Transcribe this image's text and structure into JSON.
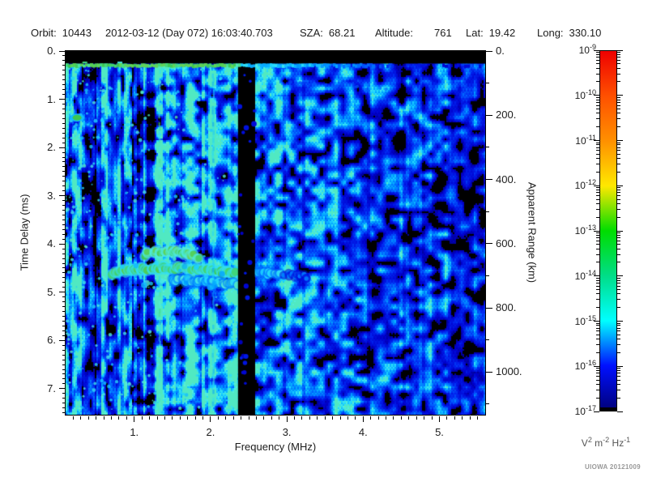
{
  "header": {
    "fields": [
      {
        "label": "Orbit:",
        "value": "10443"
      },
      {
        "label": "",
        "value": "2012-03-12 (Day 072) 16:03:40.703"
      },
      {
        "label": "SZA:",
        "value": "68.21"
      },
      {
        "label": "Altitude:",
        "value": "761"
      },
      {
        "label": "Lat:",
        "value": "19.42"
      },
      {
        "label": "Long:",
        "value": "330.10"
      }
    ]
  },
  "watermark": "UIOWA 20121009",
  "plot": {
    "x_axis": {
      "title": "Frequency (MHz)",
      "major_values": [
        1,
        2,
        3,
        4,
        5
      ],
      "major_labels": [
        "1.",
        "2.",
        "3.",
        "4.",
        "5."
      ],
      "minor_step_mhz": 0.1
    },
    "y_axis_left": {
      "title": "Time Delay (ms)",
      "major_values": [
        0,
        1,
        2,
        3,
        4,
        5,
        6,
        7
      ],
      "major_labels": [
        "0.",
        "1.",
        "2.",
        "3.",
        "4.",
        "5.",
        "6.",
        "7."
      ],
      "minor_step_ms": 0.1
    },
    "y_axis_right": {
      "title": "Apparent Range (km)",
      "major_values": [
        0,
        200,
        400,
        600,
        800,
        1000
      ],
      "major_labels": [
        "0.",
        "200.",
        "400.",
        "600.",
        "800.",
        "1000."
      ],
      "minor_step_km": 100
    },
    "colorbar": {
      "decade_base": "10",
      "decade_exponents": [
        "-9",
        "-10",
        "-11",
        "-12",
        "-13",
        "-14",
        "-15",
        "-16",
        "-17"
      ],
      "unit_parts": [
        [
          "V",
          "2"
        ],
        [
          "m",
          "-2"
        ],
        [
          "Hz",
          "-1"
        ]
      ]
    }
  },
  "chart_data": {
    "type": "heatmap",
    "title": "Radar sounder ionogram (echo spectral density vs frequency and time delay)",
    "xlabel": "Frequency (MHz)",
    "x_range_mhz": [
      0.1,
      5.6
    ],
    "ylabel": "Time Delay (ms)",
    "y_range_ms": [
      0,
      7.54
    ],
    "y2label": "Apparent Range (km)",
    "y2_range_km": [
      0,
      1133
    ],
    "zlabel": "V^2 m^-2 Hz^-1",
    "z_decades_log10": [
      -9,
      -17
    ],
    "colorbar_gradient": [
      [
        "-9",
        "#ee0000"
      ],
      [
        "-10",
        "#ff5000"
      ],
      [
        "-11",
        "#ff9000"
      ],
      [
        "-12",
        "#ffe800"
      ],
      [
        "-13",
        "#00dd00"
      ],
      [
        "-14",
        "#00dd88"
      ],
      [
        "-15",
        "#00ffff"
      ],
      [
        "-16",
        "#0010ff"
      ],
      [
        "-17",
        "#000078"
      ]
    ],
    "colormap_stops": [
      [
        0.0,
        "#000000"
      ],
      [
        0.07,
        "#000066"
      ],
      [
        0.15,
        "#0000cc"
      ],
      [
        0.25,
        "#0022ee"
      ],
      [
        0.35,
        "#0060ff"
      ],
      [
        0.45,
        "#00a0ff"
      ],
      [
        0.55,
        "#20d8ff"
      ],
      [
        0.63,
        "#55eedd"
      ],
      [
        0.71,
        "#44dd88"
      ],
      [
        0.8,
        "#3cc84e"
      ],
      [
        0.89,
        "#72d95e"
      ],
      [
        1.0,
        "#b0e878"
      ]
    ],
    "background_noise": {
      "regions": [
        {
          "f": [
            0.1,
            2.36
          ],
          "base": 0.42,
          "vertical_striping": true
        },
        {
          "f": [
            2.36,
            2.58
          ],
          "base": 0.0
        },
        {
          "f": [
            2.58,
            3.05
          ],
          "base": 0.35
        },
        {
          "f": [
            3.05,
            3.95
          ],
          "base": 0.3
        },
        {
          "f": [
            3.95,
            5.15
          ],
          "base": 0.24
        },
        {
          "f": [
            5.15,
            5.6
          ],
          "base": 0.21
        }
      ],
      "stripes": [
        {
          "f": [
            0.16,
            0.23
          ],
          "gain": 1.3
        },
        {
          "f": [
            0.35,
            0.5
          ],
          "gain": 0.45
        },
        {
          "f": [
            0.61,
            0.69
          ],
          "gain": 1.25
        },
        {
          "f": [
            0.79,
            0.86
          ],
          "gain": 1.2
        },
        {
          "f": [
            0.97,
            1.26
          ],
          "gain": 0.5
        },
        {
          "f": [
            1.07,
            1.12
          ],
          "gain": 1.8
        },
        {
          "f": [
            1.27,
            1.37
          ],
          "gain": 1.75
        },
        {
          "f": [
            1.42,
            1.6
          ],
          "gain": 1.25
        },
        {
          "f": [
            1.74,
            1.85
          ],
          "gain": 1.2
        },
        {
          "f": [
            1.98,
            2.07
          ],
          "gain": 1.45
        }
      ]
    },
    "features": {
      "receiver_blank_top_band": {
        "delay_ms": [
          0,
          0.26
        ]
      },
      "transmit_pulse_line": {
        "delay_ms": 0.3,
        "intensity_profile": [
          [
            0.1,
            0.78
          ],
          [
            1.0,
            0.85
          ],
          [
            2.3,
            0.8
          ],
          [
            2.45,
            0.5
          ],
          [
            2.6,
            0.55
          ],
          [
            3.3,
            0.48
          ],
          [
            3.6,
            0.42
          ],
          [
            4.4,
            0.3
          ],
          [
            5.0,
            0.18
          ]
        ]
      },
      "top_band_flecks": [
        [
          0.32,
          0.22,
          0.72
        ],
        [
          0.78,
          0.22,
          0.6
        ]
      ],
      "plasma_resonance_spot": {
        "f_mhz": 0.25,
        "delay_ms": 1.38,
        "intensity": 0.8
      },
      "interference_null_band": {
        "f_mhz": [
          2.36,
          2.58
        ]
      },
      "bright_interference_columns": [
        {
          "f_mhz": 1.33,
          "intensity": 0.6
        },
        {
          "f_mhz": 2.03,
          "intensity": 0.5
        }
      ],
      "ionospheric_echo_trace": {
        "segments": [
          {
            "name": "upper_arc",
            "intensity": 0.8,
            "radius": 4.0,
            "points_f_delay": [
              [
                1.13,
                4.22
              ],
              [
                1.3,
                4.17
              ],
              [
                1.5,
                4.15
              ],
              [
                1.7,
                4.19
              ],
              [
                1.87,
                4.3
              ]
            ]
          },
          {
            "name": "main_band",
            "intensity": 0.76,
            "radius": 4.5,
            "points_f_delay": [
              [
                0.72,
                4.6
              ],
              [
                0.9,
                4.55
              ],
              [
                1.1,
                4.53
              ],
              [
                1.4,
                4.5
              ],
              [
                1.7,
                4.51
              ],
              [
                2.0,
                4.55
              ],
              [
                2.2,
                4.6
              ],
              [
                2.34,
                4.62
              ]
            ]
          },
          {
            "name": "lower_band",
            "intensity": 0.58,
            "radius": 4.0,
            "points_f_delay": [
              [
                1.5,
                4.74
              ],
              [
                1.8,
                4.77
              ],
              [
                2.1,
                4.8
              ],
              [
                2.34,
                4.83
              ]
            ]
          },
          {
            "name": "tail_bright",
            "intensity": 0.55,
            "radius": 4.0,
            "points_f_delay": [
              [
                2.6,
                4.6
              ],
              [
                2.75,
                4.62
              ],
              [
                2.9,
                4.64
              ]
            ]
          },
          {
            "name": "tail_faint",
            "intensity": 0.38,
            "radius": 3.0,
            "points_f_delay": [
              [
                2.95,
                4.63
              ],
              [
                3.15,
                4.66
              ],
              [
                3.27,
                4.68
              ]
            ]
          }
        ]
      },
      "faint_streak": {
        "intensity": 0.3,
        "points_f_delay": [
          [
            2.95,
            0.62
          ],
          [
            4.3,
            0.8
          ]
        ]
      }
    }
  }
}
